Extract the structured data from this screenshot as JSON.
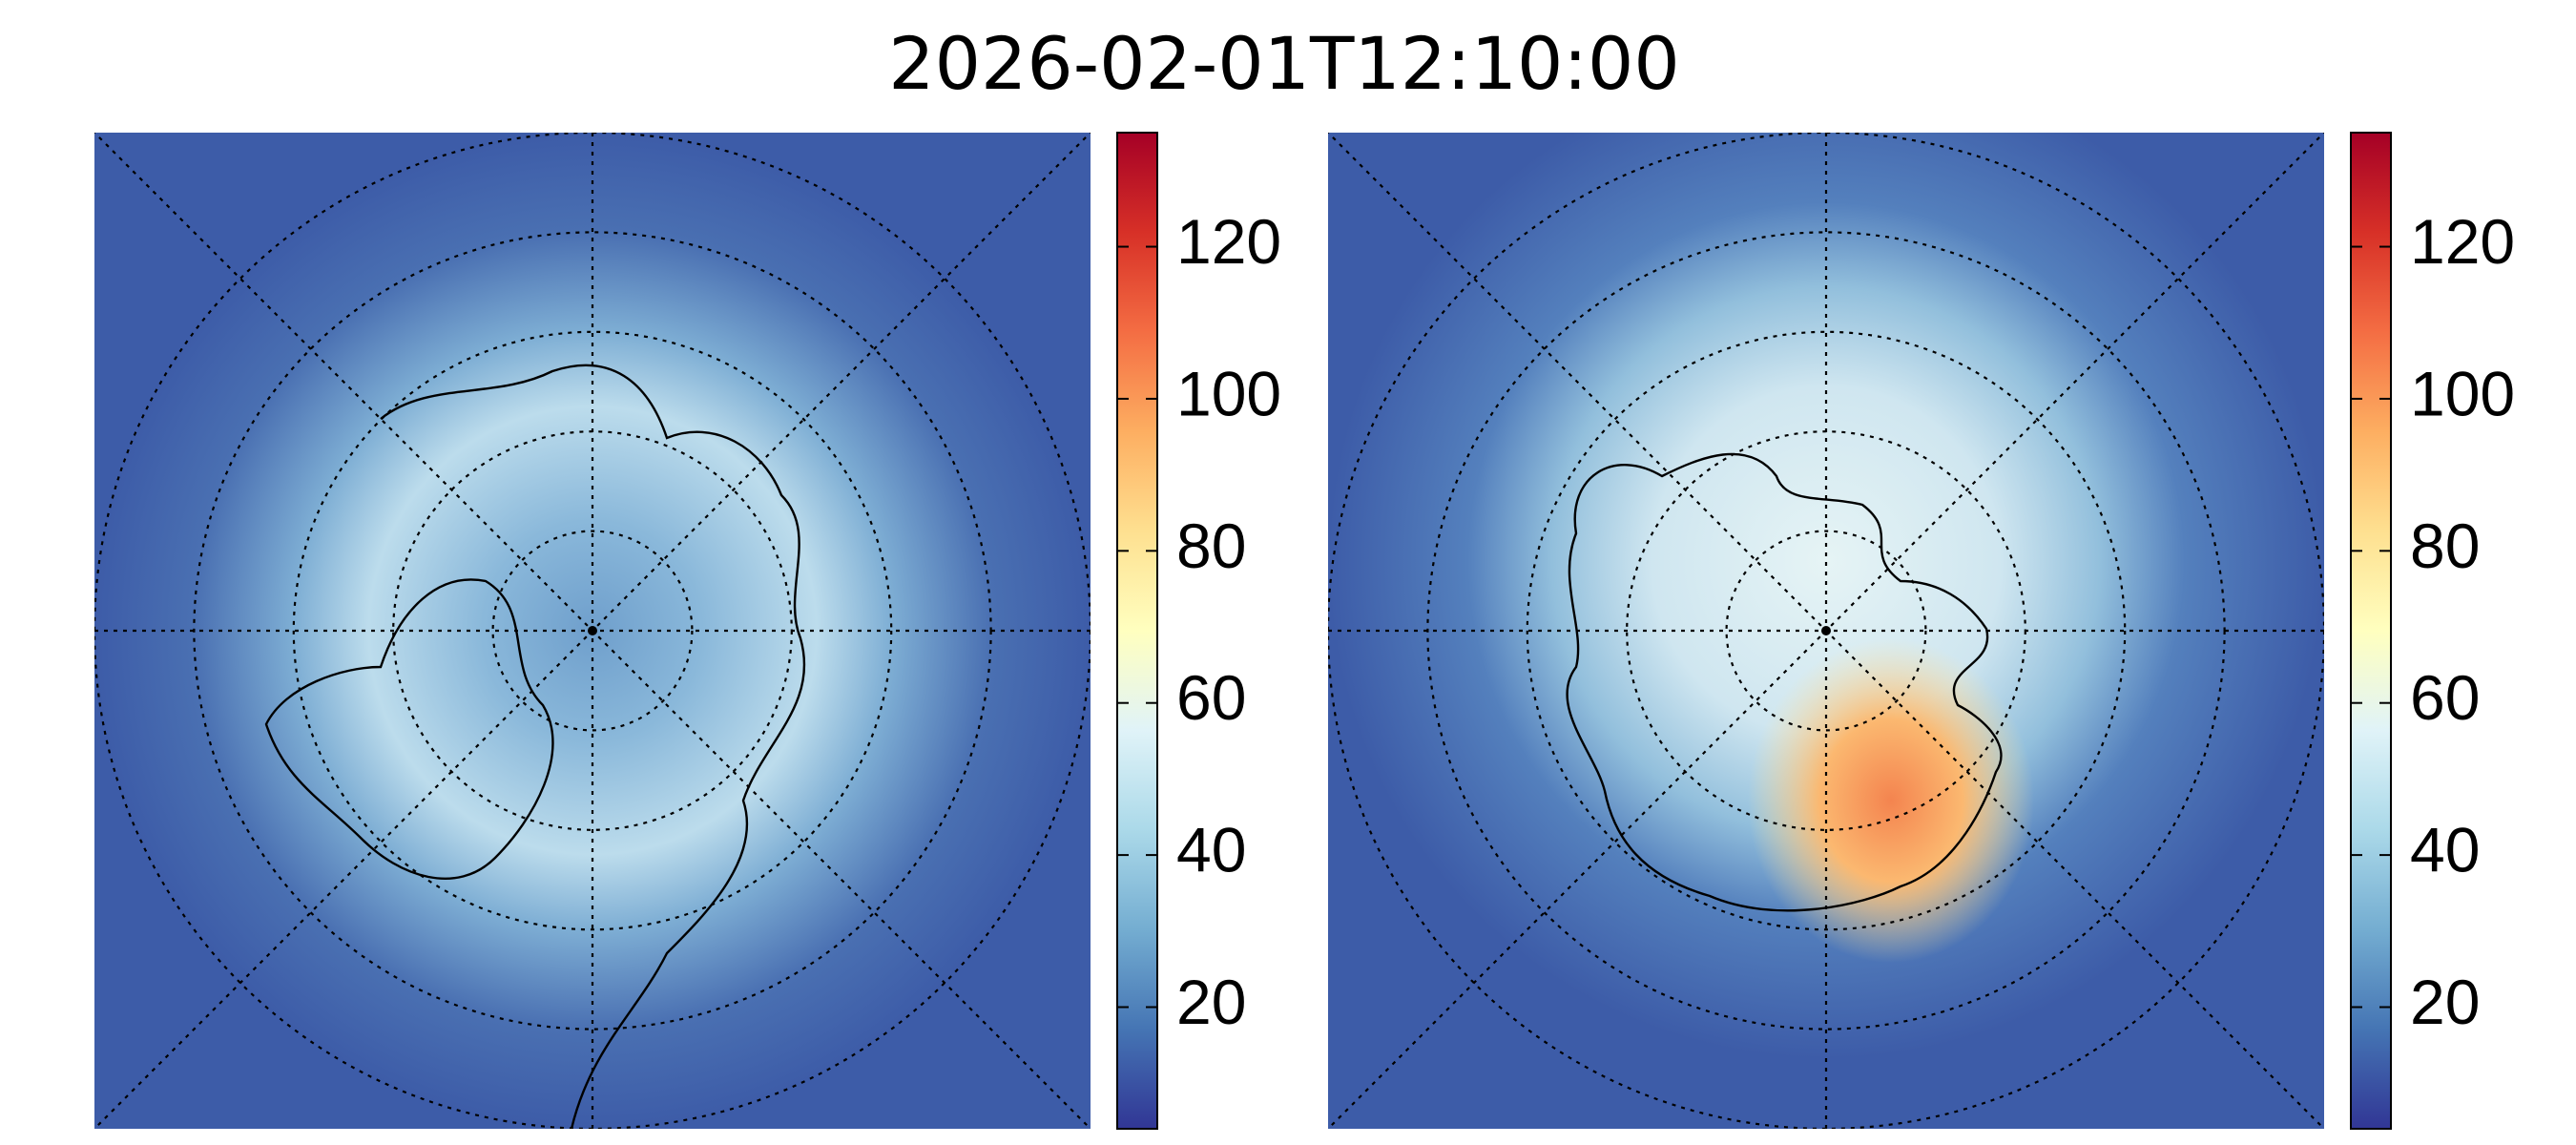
{
  "title": "2026-02-01T12:10:00",
  "chart_data": [
    {
      "type": "polar-map",
      "hemisphere": "north",
      "colorbar_lim": [
        4,
        135
      ],
      "colorbar_ticks": [
        20,
        40,
        60,
        80,
        100,
        120
      ],
      "colormap": [
        "#313695",
        "#4575b4",
        "#74add1",
        "#abd9e9",
        "#e0f3f8",
        "#ffffbf",
        "#fee090",
        "#fdae61",
        "#f46d43",
        "#d73027",
        "#a50026"
      ]
    },
    {
      "type": "polar-map",
      "hemisphere": "south",
      "colorbar_lim": [
        4,
        135
      ],
      "colorbar_ticks": [
        20,
        40,
        60,
        80,
        100,
        120
      ],
      "colormap": [
        "#313695",
        "#4575b4",
        "#74add1",
        "#abd9e9",
        "#e0f3f8",
        "#ffffbf",
        "#fee090",
        "#fdae61",
        "#f46d43",
        "#d73027",
        "#a50026"
      ]
    }
  ]
}
